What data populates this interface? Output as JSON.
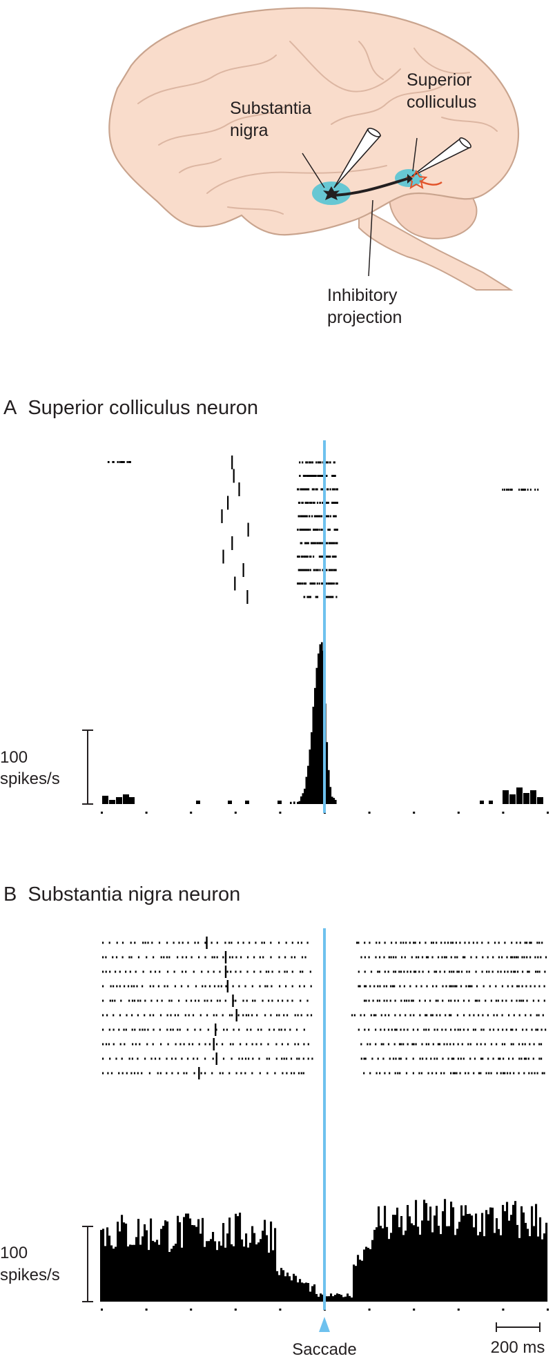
{
  "diagram": {
    "labels": {
      "substantia_nigra": [
        "Substantia",
        "nigra"
      ],
      "superior_colliculus": [
        "Superior",
        "colliculus"
      ],
      "inhibitory_projection": [
        "Inhibitory",
        "projection"
      ]
    },
    "colors": {
      "brain_fill": "#f9dccb",
      "brain_outline": "#c9a48e",
      "nucleus_highlight": "#5fc5d3",
      "axon": "#231f20",
      "target_neuron": "#e2542b",
      "saccade_line": "#6ec1ee",
      "spikes": "#000000"
    }
  },
  "panels": [
    {
      "letter": "A",
      "title": "Superior colliculus neuron",
      "raster_trials": 11,
      "scale_bar_value": "100",
      "scale_bar_unit": "spikes/s",
      "histogram_profile": "burst before saccade"
    },
    {
      "letter": "B",
      "title": "Substantia nigra neuron",
      "raster_trials": 10,
      "scale_bar_value": "100",
      "scale_bar_unit": "spikes/s",
      "histogram_profile": "tonic firing with pause at saccade"
    }
  ],
  "time_axis": {
    "event_label": "Saccade",
    "scale_bar_label": "200 ms",
    "tick_spacing_ms": 100
  }
}
